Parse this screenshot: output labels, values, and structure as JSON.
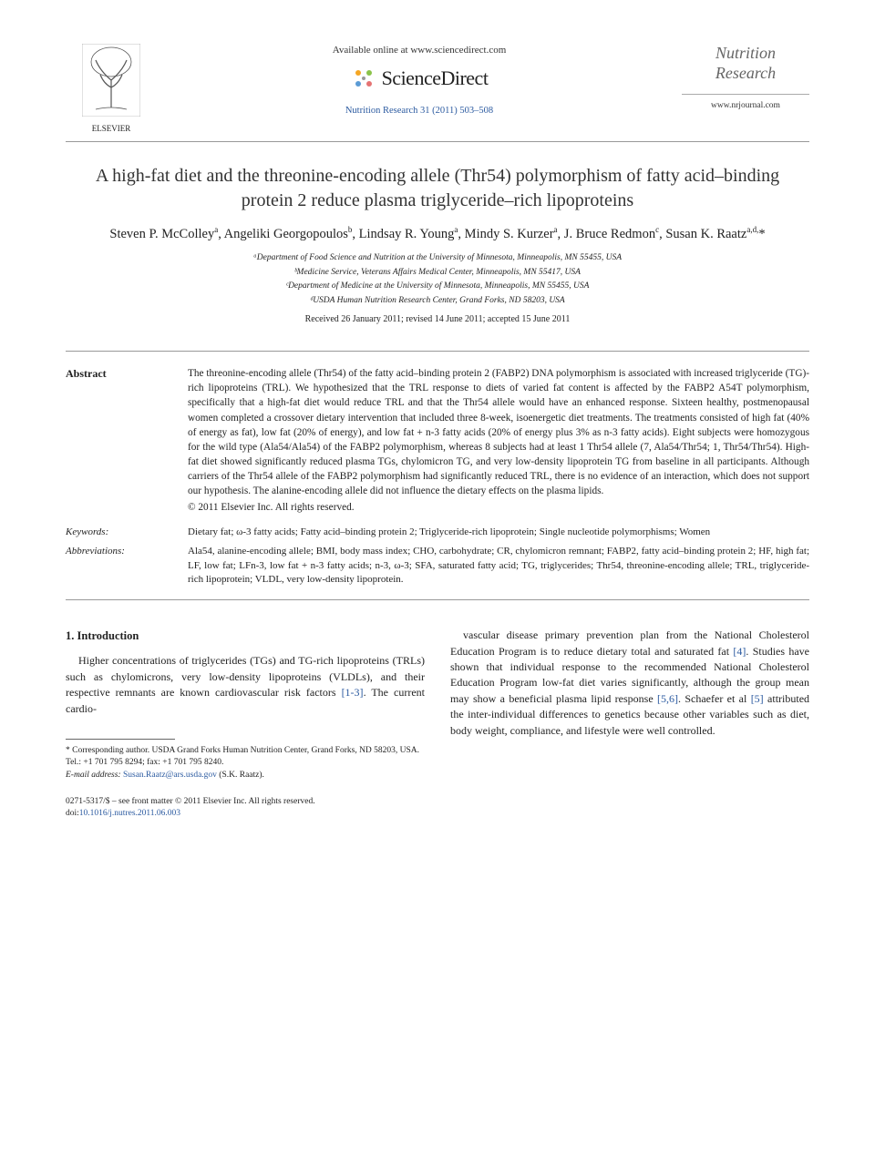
{
  "header": {
    "publisher_name": "ELSEVIER",
    "available_text": "Available online at www.sciencedirect.com",
    "sd_name": "ScienceDirect",
    "citation": "Nutrition Research 31 (2011) 503–508",
    "journal_name_line1": "Nutrition",
    "journal_name_line2": "Research",
    "journal_url": "www.nrjournal.com"
  },
  "title": "A high-fat diet and the threonine-encoding allele (Thr54) polymorphism of fatty acid–binding protein 2 reduce plasma triglyceride–rich lipoproteins",
  "authors_html": "Steven P. McColley<sup>a</sup>, Angeliki Georgopoulos<sup>b</sup>, Lindsay R. Young<sup>a</sup>, Mindy S. Kurzer<sup>a</sup>, J. Bruce Redmon<sup>c</sup>, Susan K. Raatz<sup>a,d,</sup>*",
  "affiliations": [
    "ᵃDepartment of Food Science and Nutrition at the University of Minnesota, Minneapolis, MN 55455, USA",
    "ᵇMedicine Service, Veterans Affairs Medical Center, Minneapolis, MN 55417, USA",
    "ᶜDepartment of Medicine at the University of Minnesota, Minneapolis, MN 55455, USA",
    "ᵈUSDA Human Nutrition Research Center, Grand Forks, ND 58203, USA"
  ],
  "dates": "Received 26 January 2011; revised 14 June 2011; accepted 15 June 2011",
  "abstract": {
    "label": "Abstract",
    "text": "The threonine-encoding allele (Thr54) of the fatty acid–binding protein 2 (FABP2) DNA polymorphism is associated with increased triglyceride (TG)-rich lipoproteins (TRL). We hypothesized that the TRL response to diets of varied fat content is affected by the FABP2 A54T polymorphism, specifically that a high-fat diet would reduce TRL and that the Thr54 allele would have an enhanced response. Sixteen healthy, postmenopausal women completed a crossover dietary intervention that included three 8-week, isoenergetic diet treatments. The treatments consisted of high fat (40% of energy as fat), low fat (20% of energy), and low fat + n-3 fatty acids (20% of energy plus 3% as n-3 fatty acids). Eight subjects were homozygous for the wild type (Ala54/Ala54) of the FABP2 polymorphism, whereas 8 subjects had at least 1 Thr54 allele (7, Ala54/Thr54; 1, Thr54/Thr54). High-fat diet showed significantly reduced plasma TGs, chylomicron TG, and very low-density lipoprotein TG from baseline in all participants. Although carriers of the Thr54 allele of the FABP2 polymorphism had significantly reduced TRL, there is no evidence of an interaction, which does not support our hypothesis. The alanine-encoding allele did not influence the dietary effects on the plasma lipids.",
    "copyright": "© 2011 Elsevier Inc. All rights reserved."
  },
  "keywords": {
    "label": "Keywords:",
    "text": "Dietary fat; ω-3 fatty acids; Fatty acid–binding protein 2; Triglyceride-rich lipoprotein; Single nucleotide polymorphisms; Women"
  },
  "abbreviations": {
    "label": "Abbreviations:",
    "text": "Ala54, alanine-encoding allele; BMI, body mass index; CHO, carbohydrate; CR, chylomicron remnant; FABP2, fatty acid–binding protein 2; HF, high fat; LF, low fat; LFn-3, low fat + n-3 fatty acids; n-3, ω-3; SFA, saturated fatty acid; TG, triglycerides; Thr54, threonine-encoding allele; TRL, triglyceride-rich lipoprotein; VLDL, very low-density lipoprotein."
  },
  "intro": {
    "heading": "1. Introduction",
    "col1": "Higher concentrations of triglycerides (TGs) and TG-rich lipoproteins (TRLs) such as chylomicrons, very low-density lipoproteins (VLDLs), and their respective remnants are known cardiovascular risk factors [1-3]. The current cardio-",
    "col2": "vascular disease primary prevention plan from the National Cholesterol Education Program is to reduce dietary total and saturated fat [4]. Studies have shown that individual response to the recommended National Cholesterol Education Program low-fat diet varies significantly, although the group mean may show a beneficial plasma lipid response [5,6]. Schaefer et al [5] attributed the inter-individual differences to genetics because other variables such as diet, body weight, compliance, and lifestyle were well controlled."
  },
  "footnote": {
    "corresponding": "* Corresponding author. USDA Grand Forks Human Nutrition Center, Grand Forks, ND 58203, USA. Tel.: +1 701 795 8294; fax: +1 701 795 8240.",
    "email_label": "E-mail address:",
    "email": "Susan.Raatz@ars.usda.gov",
    "email_suffix": "(S.K. Raatz)."
  },
  "footer": {
    "line1": "0271-5317/$ – see front matter © 2011 Elsevier Inc. All rights reserved.",
    "doi_label": "doi:",
    "doi": "10.1016/j.nutres.2011.06.003"
  },
  "colors": {
    "link": "#2b5aa0",
    "text": "#222222",
    "rule": "#999999"
  }
}
